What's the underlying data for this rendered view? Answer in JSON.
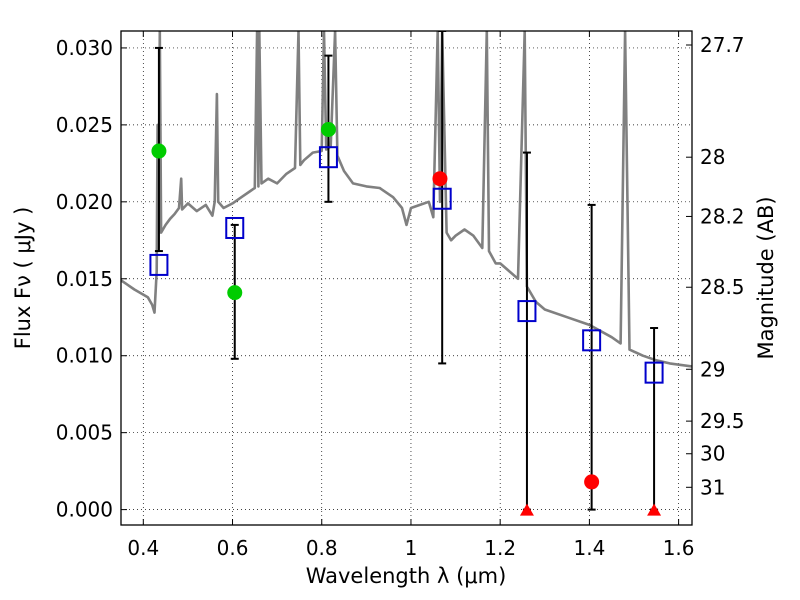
{
  "chart_data": {
    "type": "scatter",
    "title": "",
    "xlabel": "Wavelength  λ (μm)",
    "ylabel": "Flux  Fν  ( μJy )",
    "y2label": "Magnitude (AB)",
    "xlim": [
      0.35,
      1.63
    ],
    "ylim": [
      -0.001,
      0.0311
    ],
    "grid": true,
    "x_ticks": [
      0.4,
      0.6,
      0.8,
      1.0,
      1.2,
      1.4,
      1.6
    ],
    "x_tick_labels": [
      "0.4",
      "0.6",
      "0.8",
      "1",
      "1.2",
      "1.4",
      "1.6"
    ],
    "y_ticks": [
      0.0,
      0.005,
      0.01,
      0.015,
      0.02,
      0.025,
      0.03
    ],
    "y_tick_labels": [
      "0.000",
      "0.005",
      "0.010",
      "0.015",
      "0.020",
      "0.025",
      "0.030"
    ],
    "y2_ticks": [
      {
        "label": "27.7",
        "flux": 0.03019
      },
      {
        "label": "28",
        "flux": 0.0229
      },
      {
        "label": "28.2",
        "flux": 0.01905
      },
      {
        "label": "28.5",
        "flux": 0.01445
      },
      {
        "label": "29",
        "flux": 0.00912
      },
      {
        "label": "29.5",
        "flux": 0.00575
      },
      {
        "label": "30",
        "flux": 0.00363
      },
      {
        "label": "31",
        "flux": 0.00145
      }
    ],
    "series": [
      {
        "marker": "circle",
        "colors": [
          "#00cc00",
          "#00cc00",
          "#00cc00",
          "#ff0000",
          "#ff0000"
        ],
        "x": [
          0.435,
          0.605,
          0.815,
          1.065,
          1.405
        ],
        "y": [
          0.0233,
          0.0141,
          0.0247,
          0.0215,
          0.0018
        ]
      },
      {
        "marker": "square",
        "color": "#0000cc",
        "x": [
          0.435,
          0.605,
          0.815,
          1.07,
          1.26,
          1.405,
          1.545
        ],
        "y": [
          0.0159,
          0.0183,
          0.0229,
          0.0202,
          0.0129,
          0.011,
          0.0089
        ]
      },
      {
        "marker": "triangle",
        "color": "#ff0000",
        "x": [
          1.26,
          1.545
        ],
        "y": [
          0.0,
          0.0
        ]
      }
    ],
    "error_bars": [
      {
        "x": 0.435,
        "low": 0.0168,
        "high": 0.03
      },
      {
        "x": 0.605,
        "low": 0.0098,
        "high": 0.0185
      },
      {
        "x": 0.815,
        "low": 0.02,
        "high": 0.0295
      },
      {
        "x": 1.07,
        "low": 0.0095,
        "high": 0.0311
      },
      {
        "x": 1.26,
        "low": 0.0,
        "high": 0.0232
      },
      {
        "x": 1.405,
        "low": 0.0,
        "high": 0.0198
      },
      {
        "x": 1.545,
        "low": 0.0,
        "high": 0.0118
      }
    ],
    "spectrum": {
      "color": "#808080",
      "points": [
        [
          0.35,
          0.0149
        ],
        [
          0.38,
          0.0143
        ],
        [
          0.41,
          0.0138
        ],
        [
          0.42,
          0.0133
        ],
        [
          0.425,
          0.0128
        ],
        [
          0.43,
          0.0155
        ],
        [
          0.432,
          0.025
        ],
        [
          0.434,
          0.017
        ],
        [
          0.437,
          0.0311
        ],
        [
          0.44,
          0.018
        ],
        [
          0.45,
          0.0185
        ],
        [
          0.46,
          0.0189
        ],
        [
          0.47,
          0.0192
        ],
        [
          0.48,
          0.0196
        ],
        [
          0.485,
          0.0215
        ],
        [
          0.487,
          0.0195
        ],
        [
          0.5,
          0.0199
        ],
        [
          0.52,
          0.0194
        ],
        [
          0.54,
          0.0198
        ],
        [
          0.555,
          0.0191
        ],
        [
          0.56,
          0.02
        ],
        [
          0.565,
          0.027
        ],
        [
          0.568,
          0.02
        ],
        [
          0.58,
          0.0196
        ],
        [
          0.6,
          0.0199
        ],
        [
          0.62,
          0.0203
        ],
        [
          0.64,
          0.0207
        ],
        [
          0.65,
          0.0209
        ],
        [
          0.655,
          0.0311
        ],
        [
          0.658,
          0.021
        ],
        [
          0.66,
          0.0311
        ],
        [
          0.665,
          0.0212
        ],
        [
          0.68,
          0.0215
        ],
        [
          0.7,
          0.0212
        ],
        [
          0.72,
          0.0218
        ],
        [
          0.74,
          0.0222
        ],
        [
          0.748,
          0.0311
        ],
        [
          0.752,
          0.0224
        ],
        [
          0.76,
          0.0227
        ],
        [
          0.78,
          0.0232
        ],
        [
          0.8,
          0.0233
        ],
        [
          0.805,
          0.0311
        ],
        [
          0.81,
          0.0234
        ],
        [
          0.82,
          0.0236
        ],
        [
          0.83,
          0.0311
        ],
        [
          0.835,
          0.023
        ],
        [
          0.85,
          0.022
        ],
        [
          0.87,
          0.0212
        ],
        [
          0.9,
          0.021
        ],
        [
          0.93,
          0.0209
        ],
        [
          0.96,
          0.0203
        ],
        [
          0.98,
          0.0196
        ],
        [
          0.99,
          0.0185
        ],
        [
          1.0,
          0.0196
        ],
        [
          1.02,
          0.0198
        ],
        [
          1.04,
          0.02
        ],
        [
          1.05,
          0.019
        ],
        [
          1.06,
          0.0311
        ],
        [
          1.065,
          0.02
        ],
        [
          1.07,
          0.0311
        ],
        [
          1.08,
          0.018
        ],
        [
          1.09,
          0.0175
        ],
        [
          1.1,
          0.0178
        ],
        [
          1.12,
          0.0182
        ],
        [
          1.14,
          0.0178
        ],
        [
          1.16,
          0.017
        ],
        [
          1.17,
          0.0311
        ],
        [
          1.175,
          0.0168
        ],
        [
          1.19,
          0.016
        ],
        [
          1.2,
          0.016
        ],
        [
          1.22,
          0.0155
        ],
        [
          1.24,
          0.015
        ],
        [
          1.255,
          0.0311
        ],
        [
          1.26,
          0.0145
        ],
        [
          1.28,
          0.0135
        ],
        [
          1.3,
          0.013
        ],
        [
          1.35,
          0.0125
        ],
        [
          1.4,
          0.012
        ],
        [
          1.45,
          0.0112
        ],
        [
          1.47,
          0.0108
        ],
        [
          1.48,
          0.0311
        ],
        [
          1.49,
          0.0104
        ],
        [
          1.52,
          0.01
        ],
        [
          1.55,
          0.0097
        ],
        [
          1.58,
          0.0095
        ],
        [
          1.63,
          0.0093
        ]
      ]
    }
  }
}
